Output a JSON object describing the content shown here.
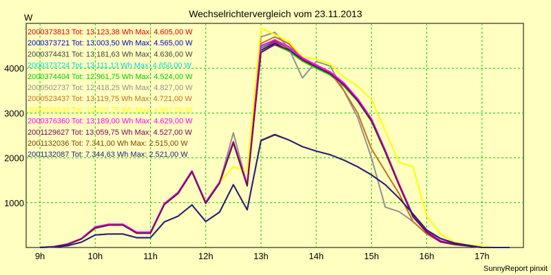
{
  "chart_data": {
    "type": "line",
    "title": "Wechselrichtervergleich vom 23.11.2013",
    "ylabel": "W",
    "xlabel": "",
    "footer": "SunnyReport pinxit",
    "grid": true,
    "legend_placement": "top-left",
    "xlim": [
      8.75,
      17.75
    ],
    "ylim": [
      0,
      5000
    ],
    "x_ticks": [
      {
        "value": 9,
        "label": "9h"
      },
      {
        "value": 10,
        "label": "10h"
      },
      {
        "value": 11,
        "label": "11h"
      },
      {
        "value": 12,
        "label": "12h"
      },
      {
        "value": 13,
        "label": "13h"
      },
      {
        "value": 14,
        "label": "14h"
      },
      {
        "value": 15,
        "label": "15h"
      },
      {
        "value": 16,
        "label": "16h"
      },
      {
        "value": 17,
        "label": "17h"
      }
    ],
    "y_ticks": [
      {
        "value": 1000,
        "label": "1000"
      },
      {
        "value": 2000,
        "label": "2000"
      },
      {
        "value": 3000,
        "label": "3000"
      },
      {
        "value": 4000,
        "label": "4000"
      }
    ],
    "x": [
      9.0,
      9.25,
      9.5,
      9.75,
      10.0,
      10.25,
      10.5,
      10.75,
      11.0,
      11.25,
      11.5,
      11.75,
      12.0,
      12.25,
      12.5,
      12.75,
      13.0,
      13.25,
      13.5,
      13.75,
      14.0,
      14.25,
      14.5,
      14.75,
      15.0,
      15.25,
      15.5,
      15.75,
      16.0,
      16.25,
      16.5,
      16.75,
      17.0,
      17.25,
      17.5
    ],
    "series": [
      {
        "name": "2000373813 Tot: 13.123,38 Wh Max: 4.605,00 W",
        "color": "#e00000",
        "values": [
          0,
          20,
          80,
          200,
          450,
          510,
          510,
          330,
          330,
          970,
          1220,
          1700,
          1000,
          1450,
          2350,
          1390,
          4450,
          4600,
          4450,
          4200,
          4050,
          3900,
          3650,
          3300,
          2850,
          2150,
          1400,
          700,
          350,
          140,
          80,
          40,
          0,
          0,
          0
        ]
      },
      {
        "name": "2000373721 Tot: 13.003,50 Wh Max: 4.565,00 W",
        "color": "#0000cc",
        "values": [
          0,
          15,
          70,
          190,
          430,
          500,
          500,
          320,
          320,
          960,
          1210,
          1690,
          990,
          1440,
          2340,
          1380,
          4400,
          4560,
          4400,
          4180,
          4030,
          3880,
          3620,
          3280,
          2830,
          2140,
          1390,
          690,
          340,
          130,
          70,
          35,
          0,
          0,
          0
        ]
      },
      {
        "name": "2000374431 Tot: 13.181,63 Wh Max: 4.636,00 W",
        "color": "#404040",
        "values": [
          0,
          20,
          80,
          200,
          460,
          520,
          520,
          340,
          340,
          980,
          1230,
          1710,
          1010,
          1460,
          2360,
          1400,
          4480,
          4620,
          4470,
          4220,
          4060,
          3910,
          3660,
          3310,
          2860,
          2160,
          1410,
          710,
          350,
          140,
          80,
          40,
          0,
          0,
          0
        ]
      },
      {
        "name": "2000373724 Tot: 13.111,13 Wh Max: 4.650,00 W",
        "color": "#00d8d8",
        "values": [
          0,
          20,
          80,
          200,
          450,
          510,
          510,
          330,
          330,
          970,
          1220,
          1700,
          1000,
          1450,
          2350,
          1390,
          4460,
          4640,
          4460,
          4210,
          4050,
          3900,
          3650,
          3300,
          2850,
          2150,
          1400,
          700,
          350,
          140,
          80,
          40,
          0,
          0,
          0
        ]
      },
      {
        "name": "2000374404 Tot: 12.961,75 Wh Max: 4.524,00 W",
        "color": "#00cc00",
        "values": [
          0,
          15,
          70,
          190,
          430,
          500,
          500,
          320,
          320,
          960,
          1200,
          1680,
          980,
          1430,
          2330,
          1370,
          4380,
          4520,
          4380,
          4160,
          4000,
          3850,
          3600,
          3260,
          2810,
          2120,
          1380,
          680,
          340,
          130,
          70,
          35,
          0,
          0,
          0
        ]
      },
      {
        "name": "2000502737 Tot: 12.418,25 Wh Max: 4.827,00 W",
        "color": "#909090",
        "values": [
          0,
          20,
          80,
          200,
          440,
          500,
          500,
          320,
          320,
          960,
          1210,
          1680,
          990,
          1440,
          2560,
          1390,
          4700,
          4800,
          4450,
          3780,
          4150,
          4050,
          3500,
          2900,
          2000,
          900,
          800,
          580,
          300,
          120,
          60,
          30,
          0,
          0,
          0
        ]
      },
      {
        "name": "2000523437 Tot: 13.119,75 Wh Max: 4.721,00 W",
        "color": "#c07020",
        "values": [
          0,
          20,
          80,
          200,
          450,
          510,
          510,
          330,
          330,
          970,
          1220,
          1700,
          1000,
          1460,
          2360,
          1390,
          4550,
          4700,
          4550,
          4200,
          4080,
          3900,
          3500,
          3000,
          2200,
          1700,
          1200,
          580,
          300,
          140,
          80,
          40,
          0,
          0,
          0
        ]
      },
      {
        "name": "2000534939 Tot: 13.097,75 Wh Max: 4.907,00 W",
        "color": "#ffff00",
        "values": [
          0,
          20,
          80,
          200,
          450,
          510,
          510,
          330,
          330,
          970,
          1220,
          1700,
          1000,
          1450,
          1800,
          1700,
          4900,
          4750,
          4600,
          4250,
          4200,
          4100,
          3800,
          3600,
          3300,
          2600,
          1900,
          1800,
          700,
          300,
          120,
          60,
          30,
          0,
          0
        ]
      },
      {
        "name": "2000376360 Tot: 13.189,00 Wh Max: 4.629,00 W",
        "color": "#ff00ff",
        "values": [
          0,
          20,
          80,
          200,
          460,
          520,
          520,
          340,
          340,
          980,
          1230,
          1710,
          1010,
          1460,
          2360,
          1400,
          4500,
          4630,
          4480,
          4230,
          4070,
          3920,
          3670,
          3320,
          2870,
          2170,
          1420,
          720,
          360,
          150,
          80,
          40,
          0,
          0,
          0
        ]
      },
      {
        "name": "2001129627 Tot: 13.059,75 Wh Max: 4.527,00 W",
        "color": "#800060",
        "values": [
          0,
          15,
          70,
          190,
          440,
          500,
          500,
          320,
          320,
          960,
          1210,
          1690,
          990,
          1440,
          2340,
          1380,
          4350,
          4527,
          4420,
          4190,
          4030,
          3880,
          3630,
          3280,
          2830,
          2140,
          1390,
          690,
          340,
          130,
          70,
          35,
          0,
          0,
          0
        ]
      },
      {
        "name": "2001132036 Tot: 7.341,00 Wh Max: 2.515,00 W",
        "color": "#804000",
        "values": [
          0,
          10,
          40,
          120,
          280,
          300,
          300,
          220,
          220,
          570,
          700,
          950,
          580,
          790,
          1400,
          840,
          2380,
          2510,
          2400,
          2250,
          2150,
          2070,
          1950,
          1800,
          1620,
          1400,
          1100,
          750,
          390,
          200,
          100,
          50,
          0,
          0,
          0
        ]
      },
      {
        "name": "2001132087 Tot: 7.344,63 Wh Max: 2.521,00 W",
        "color": "#202080",
        "values": [
          0,
          10,
          40,
          120,
          280,
          300,
          300,
          220,
          220,
          570,
          700,
          950,
          580,
          790,
          1400,
          840,
          2390,
          2521,
          2400,
          2250,
          2150,
          2070,
          1950,
          1800,
          1620,
          1400,
          1100,
          750,
          390,
          200,
          100,
          50,
          0,
          0,
          0
        ]
      }
    ]
  }
}
